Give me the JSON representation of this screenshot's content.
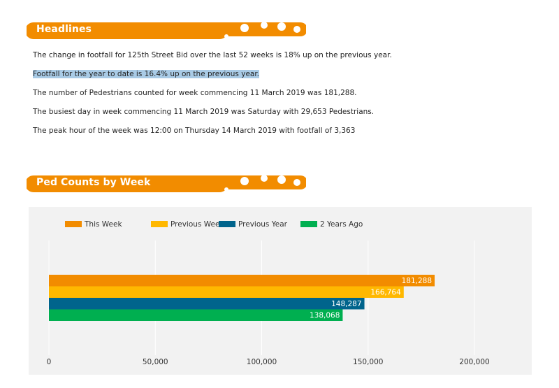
{
  "headlines_section": {
    "title": "Headlines",
    "lines": [
      {
        "pre": "The change in footfall for 125th Street Bid over the last 52 weeks is 18% up on the previous year.",
        "highlight": "",
        "post": ""
      },
      {
        "pre": "",
        "highlight": "Footfall for the year to date is 16.4% up on the previous year.",
        "post": ""
      },
      {
        "pre": "The number of Pedestrians counted for week commencing 11 March 2019 was 181,288.",
        "highlight": "",
        "post": ""
      },
      {
        "pre": "The busiest day in week commencing 11 March 2019 was Saturday with 29,653 Pedestrians.",
        "highlight": "",
        "post": ""
      },
      {
        "pre": "The peak hour of the week was 12:00 on Thursday 14 March 2019 with footfall of 3,363",
        "highlight": "",
        "post": ""
      }
    ]
  },
  "chart_section": {
    "title": "Ped Counts by Week"
  },
  "colors": {
    "banner_orange": "#f28c00",
    "grid": "#ffffff",
    "panel_bg": "#f2f2f2",
    "highlight": "#a9cbe6"
  },
  "chart_data": {
    "type": "bar",
    "orientation": "horizontal",
    "title": "",
    "xlabel": "",
    "ylabel": "",
    "xlim": [
      0,
      200000
    ],
    "x_ticks": [
      0,
      50000,
      100000,
      150000,
      200000
    ],
    "x_tick_labels": [
      "0",
      "50,000",
      "100,000",
      "150,000",
      "200,000"
    ],
    "grid": true,
    "legend_position": "top-left",
    "series": [
      {
        "name": "This Week",
        "value": 181288,
        "label": "181,288",
        "color": "#f28c00"
      },
      {
        "name": "Previous Week",
        "value": 166764,
        "label": "166,764",
        "color": "#ffb800"
      },
      {
        "name": "Previous Year",
        "value": 148287,
        "label": "148,287",
        "color": "#00648c"
      },
      {
        "name": "2 Years Ago",
        "value": 138068,
        "label": "138,068",
        "color": "#00af50"
      }
    ]
  }
}
